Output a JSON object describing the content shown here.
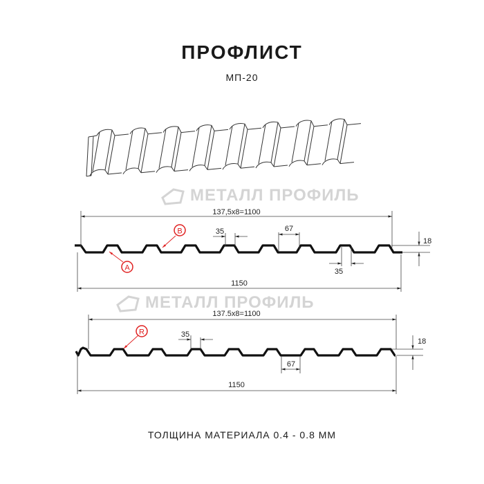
{
  "title": "ПРОФЛИСТ",
  "subtitle": "МП-20",
  "footer": "ТОЛЩИНА МАТЕРИАЛА 0.4 - 0.8 ММ",
  "watermark": "МЕТАЛЛ ПРОФИЛЬ",
  "profile1": {
    "pitch_label": "137,5x8=1100",
    "width_label": "1150",
    "top_width_label": "35",
    "bottom_width_label": "35",
    "gap_label": "67",
    "height_label": "18",
    "marker_a": "A",
    "marker_b": "B"
  },
  "profile2": {
    "pitch_label": "137.5x8=1100",
    "width_label": "1150",
    "top_width_label": "35",
    "gap_label": "67",
    "height_label": "18",
    "marker_r": "R"
  },
  "colors": {
    "line": "#111111",
    "marker": "#e02020",
    "watermark": "#d4d4d4"
  }
}
